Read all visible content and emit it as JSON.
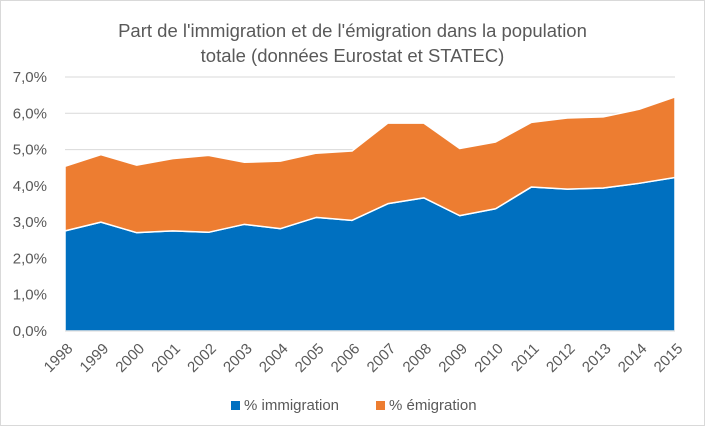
{
  "chart_data": {
    "type": "area",
    "stacked": true,
    "title_lines": [
      "Part de l'immigration et de l'émigration dans la population",
      "totale (données Eurostat et STATEC)"
    ],
    "categories": [
      "1998",
      "1999",
      "2000",
      "2001",
      "2002",
      "2003",
      "2004",
      "2005",
      "2006",
      "2007",
      "2008",
      "2009",
      "2010",
      "2011",
      "2012",
      "2013",
      "2014",
      "2015"
    ],
    "series": [
      {
        "name": "% immigration",
        "color": "#0070c0",
        "values": [
          2.76,
          3.0,
          2.71,
          2.76,
          2.72,
          2.94,
          2.82,
          3.13,
          3.05,
          3.51,
          3.67,
          3.18,
          3.37,
          3.97,
          3.91,
          3.94,
          4.07,
          4.23
        ]
      },
      {
        "name": "% émigration",
        "color": "#ed7d31",
        "values": [
          1.78,
          1.86,
          1.86,
          1.99,
          2.12,
          1.71,
          1.86,
          1.77,
          1.91,
          2.22,
          2.06,
          1.85,
          1.84,
          1.78,
          1.96,
          1.96,
          2.04,
          2.22
        ]
      }
    ],
    "yticks": [
      "0,0%",
      "1,0%",
      "2,0%",
      "3,0%",
      "4,0%",
      "5,0%",
      "6,0%",
      "7,0%"
    ],
    "ylim": [
      0,
      7
    ],
    "grid": true,
    "legend_position": "bottom"
  }
}
